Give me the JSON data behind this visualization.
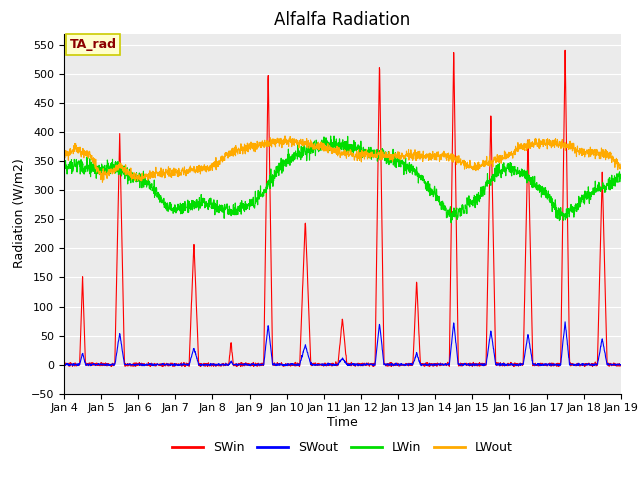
{
  "title": "Alfalfa Radiation",
  "xlabel": "Time",
  "ylabel": "Radiation (W/m2)",
  "ylim": [
    -50,
    570
  ],
  "background_color": "#ffffff",
  "plot_bg_color": "#ebebeb",
  "annotation_text": "TA_rad",
  "annotation_color": "#8b0000",
  "annotation_bg": "#ffffcc",
  "annotation_edge": "#cccc00",
  "legend_entries": [
    "SWin",
    "SWout",
    "LWin",
    "LWout"
  ],
  "line_colors": {
    "SWin": "#ff0000",
    "SWout": "#0000ff",
    "LWin": "#00dd00",
    "LWout": "#ffaa00"
  },
  "yticks": [
    -50,
    0,
    50,
    100,
    150,
    200,
    250,
    300,
    350,
    400,
    450,
    500,
    550
  ],
  "xtick_labels": [
    "Jan 4",
    "Jan 5",
    "Jan 6",
    "Jan 7",
    "Jan 8",
    "Jan 9",
    "Jan 10",
    "Jan 11",
    "Jan 12",
    "Jan 13",
    "Jan 14",
    "Jan 15",
    "Jan 16",
    "Jan 17",
    "Jan 18",
    "Jan 19"
  ],
  "title_fontsize": 12,
  "label_fontsize": 9,
  "tick_fontsize": 8
}
